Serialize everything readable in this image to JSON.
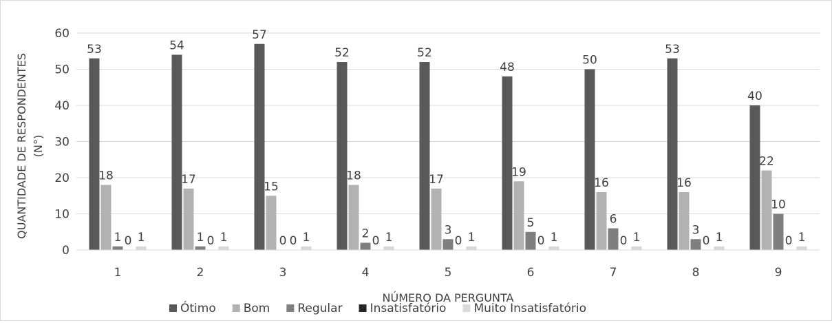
{
  "chart_data": {
    "type": "bar",
    "title": "",
    "xlabel": "NÚMERO DA PERGUNTA",
    "ylabel_line1": "QUANTIDADE DE RESPONDENTES",
    "ylabel_line2": "(N°)",
    "ylim": [
      0,
      60
    ],
    "yticks": [
      "0",
      "10",
      "20",
      "30",
      "40",
      "50",
      "60"
    ],
    "categories": [
      "1",
      "2",
      "3",
      "4",
      "5",
      "6",
      "7",
      "8",
      "9"
    ],
    "grid": true,
    "legend_position": "bottom",
    "series": [
      {
        "name": "Ótimo",
        "color": "#595959",
        "values": [
          53,
          54,
          57,
          52,
          52,
          48,
          50,
          53,
          40
        ]
      },
      {
        "name": "Bom",
        "color": "#b2b2b2",
        "values": [
          18,
          17,
          15,
          18,
          17,
          19,
          16,
          16,
          22
        ]
      },
      {
        "name": "Regular",
        "color": "#7f7f7f",
        "values": [
          1,
          1,
          0,
          2,
          3,
          5,
          6,
          3,
          10
        ]
      },
      {
        "name": "Insatisfatório",
        "color": "#262626",
        "values": [
          0,
          0,
          0,
          0,
          0,
          0,
          0,
          0,
          0
        ]
      },
      {
        "name": "Muito Insatisfatório",
        "color": "#d9d9d9",
        "values": [
          1,
          1,
          1,
          1,
          1,
          1,
          1,
          1,
          1
        ]
      }
    ]
  }
}
